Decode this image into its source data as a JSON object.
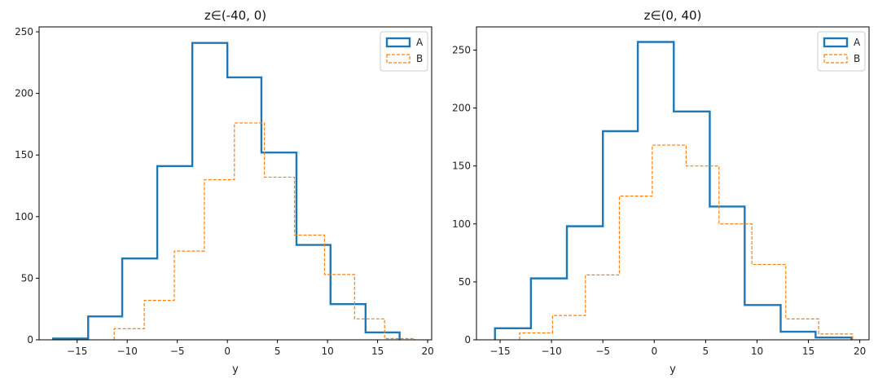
{
  "chart_data": [
    {
      "type": "histogram-step",
      "title": "z∈(-40, 0)",
      "xlabel": "y",
      "ylabel": "",
      "xlim": [
        -18.8,
        20.4
      ],
      "ylim": [
        0,
        254
      ],
      "xticks": [
        -15,
        -10,
        -5,
        0,
        5,
        10,
        15,
        20
      ],
      "yticks": [
        0,
        50,
        100,
        150,
        200,
        250
      ],
      "legend": "top-right",
      "series": [
        {
          "name": "A",
          "color": "#1f77b4",
          "style": "solid",
          "edges": [
            -17.4,
            -13.9,
            -10.5,
            -7.0,
            -3.5,
            0.0,
            3.4,
            6.9,
            10.3,
            13.8,
            17.2
          ],
          "counts": [
            1,
            19,
            66,
            141,
            241,
            213,
            152,
            77,
            29,
            6
          ]
        },
        {
          "name": "B",
          "color": "#ff7f0e",
          "style": "dashed",
          "edges": [
            -11.3,
            -8.3,
            -5.3,
            -2.3,
            0.7,
            3.7,
            6.7,
            9.7,
            12.7,
            15.7,
            18.7
          ],
          "counts": [
            9,
            32,
            72,
            130,
            176,
            132,
            85,
            53,
            17,
            1
          ]
        }
      ]
    },
    {
      "type": "histogram-step",
      "title": "z∈(0, 40)",
      "xlabel": "y",
      "ylabel": "",
      "xlim": [
        -17.3,
        20.9
      ],
      "ylim": [
        0,
        270
      ],
      "xticks": [
        -15,
        -10,
        -5,
        0,
        5,
        10,
        15,
        20
      ],
      "yticks": [
        0,
        50,
        100,
        150,
        200,
        250
      ],
      "legend": "top-right",
      "series": [
        {
          "name": "A",
          "color": "#1f77b4",
          "style": "solid",
          "edges": [
            -15.5,
            -12.0,
            -8.5,
            -5.0,
            -1.6,
            1.9,
            5.4,
            8.8,
            12.3,
            15.7,
            19.2
          ],
          "counts": [
            10,
            53,
            98,
            180,
            257,
            197,
            115,
            30,
            7,
            2
          ]
        },
        {
          "name": "B",
          "color": "#ff7f0e",
          "style": "dashed",
          "edges": [
            -13.1,
            -9.9,
            -6.7,
            -3.4,
            -0.2,
            3.1,
            6.3,
            9.5,
            12.8,
            16.0,
            19.3
          ],
          "counts": [
            6,
            21,
            56,
            124,
            168,
            150,
            100,
            65,
            18,
            5
          ]
        }
      ]
    }
  ]
}
